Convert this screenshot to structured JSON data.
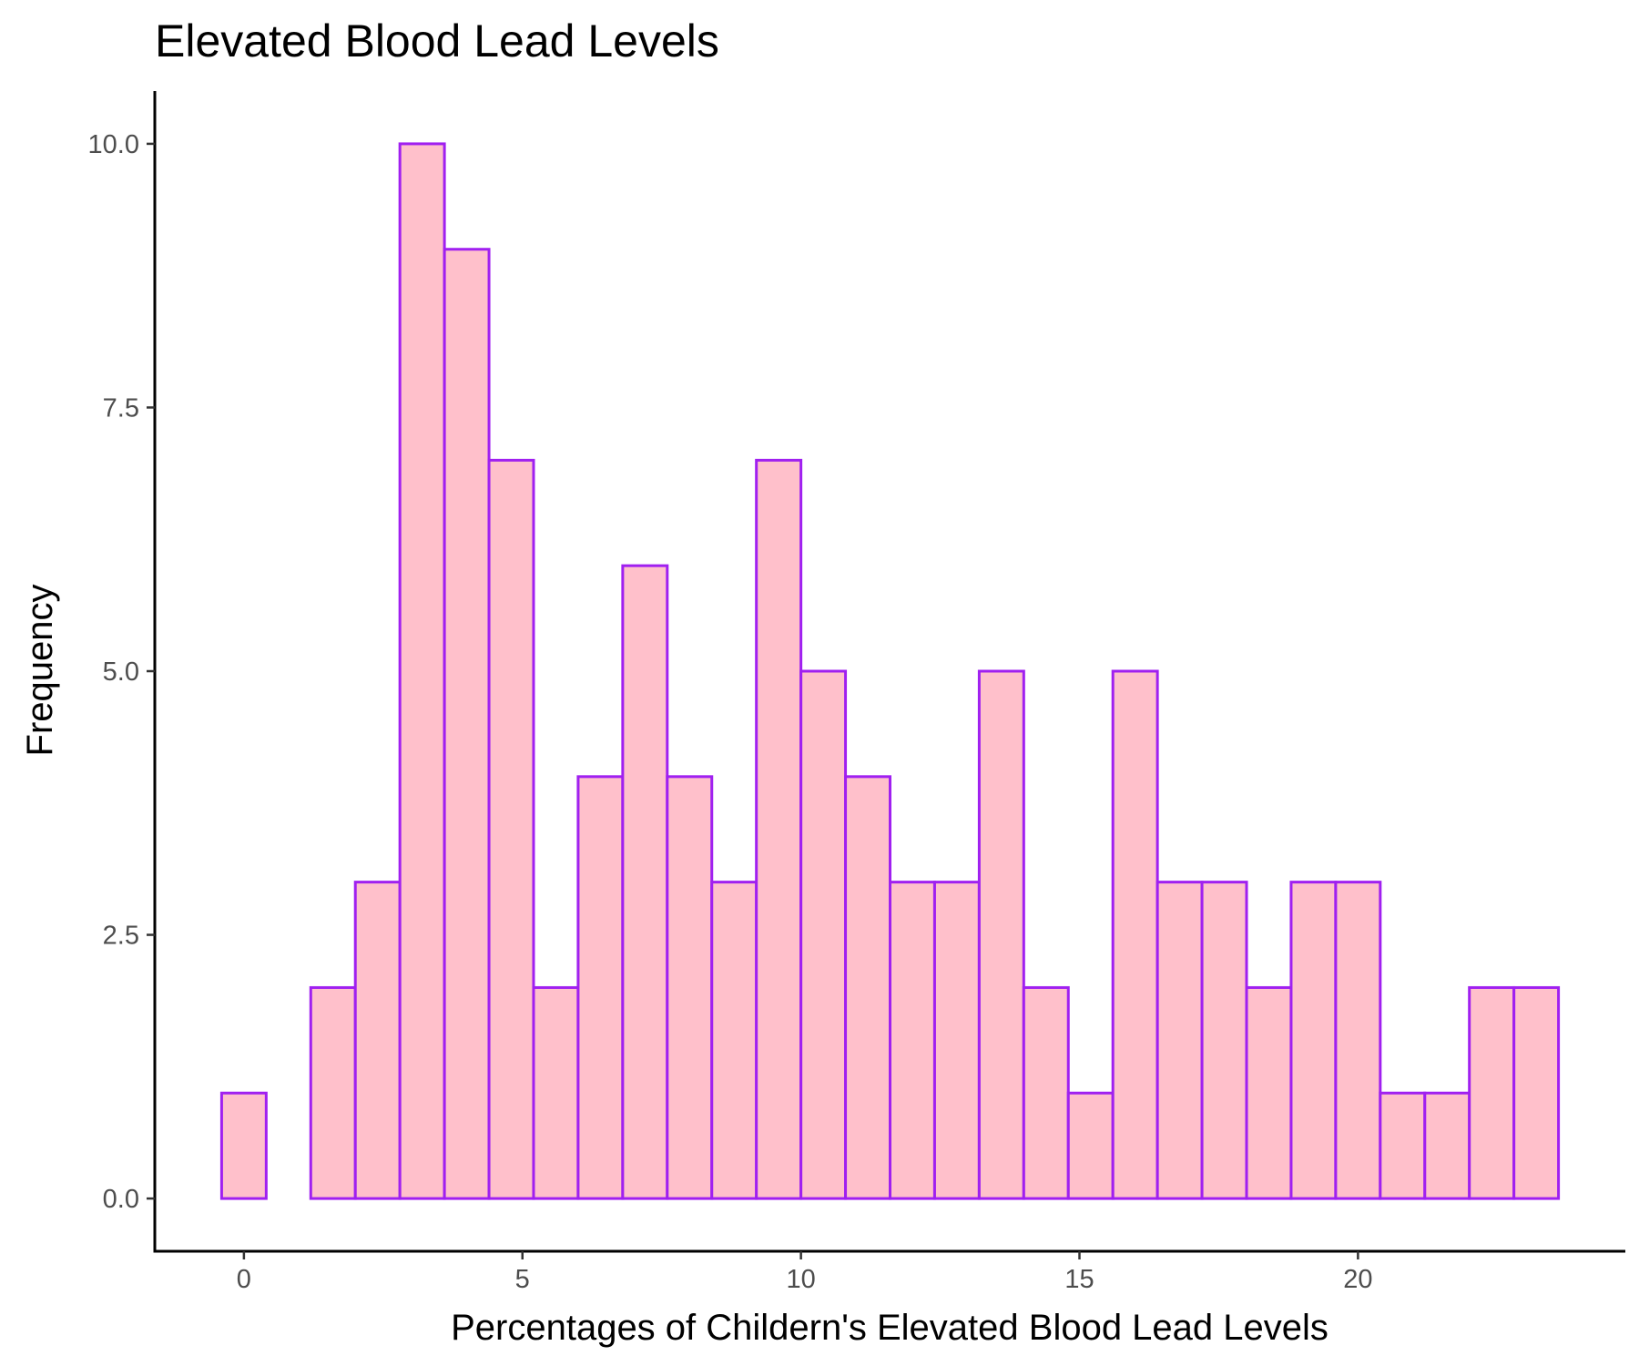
{
  "chart_data": {
    "type": "bar",
    "title": "Elevated Blood Lead Levels",
    "xlabel": "Percentages of Childern's Elevated Blood Lead Levels",
    "ylabel": "Frequency",
    "bins": [
      {
        "x0": -0.4,
        "x1": 0.4,
        "count": 1
      },
      {
        "x0": 0.4,
        "x1": 1.2,
        "count": 0
      },
      {
        "x0": 1.2,
        "x1": 2.0,
        "count": 2
      },
      {
        "x0": 2.0,
        "x1": 2.8,
        "count": 3
      },
      {
        "x0": 2.8,
        "x1": 3.6,
        "count": 10
      },
      {
        "x0": 3.6,
        "x1": 4.4,
        "count": 9
      },
      {
        "x0": 4.4,
        "x1": 5.2,
        "count": 7
      },
      {
        "x0": 5.2,
        "x1": 6.0,
        "count": 2
      },
      {
        "x0": 6.0,
        "x1": 6.8,
        "count": 4
      },
      {
        "x0": 6.8,
        "x1": 7.6,
        "count": 6
      },
      {
        "x0": 7.6,
        "x1": 8.4,
        "count": 4
      },
      {
        "x0": 8.4,
        "x1": 9.2,
        "count": 3
      },
      {
        "x0": 9.2,
        "x1": 10.0,
        "count": 7
      },
      {
        "x0": 10.0,
        "x1": 10.8,
        "count": 5
      },
      {
        "x0": 10.8,
        "x1": 11.6,
        "count": 4
      },
      {
        "x0": 11.6,
        "x1": 12.4,
        "count": 3
      },
      {
        "x0": 12.4,
        "x1": 13.2,
        "count": 3
      },
      {
        "x0": 13.2,
        "x1": 14.0,
        "count": 5
      },
      {
        "x0": 14.0,
        "x1": 14.8,
        "count": 2
      },
      {
        "x0": 14.8,
        "x1": 15.6,
        "count": 1
      },
      {
        "x0": 15.6,
        "x1": 16.4,
        "count": 5
      },
      {
        "x0": 16.4,
        "x1": 17.2,
        "count": 3
      },
      {
        "x0": 17.2,
        "x1": 18.0,
        "count": 3
      },
      {
        "x0": 18.0,
        "x1": 18.8,
        "count": 2
      },
      {
        "x0": 18.8,
        "x1": 19.6,
        "count": 3
      },
      {
        "x0": 19.6,
        "x1": 20.4,
        "count": 3
      },
      {
        "x0": 20.4,
        "x1": 21.2,
        "count": 1
      },
      {
        "x0": 21.2,
        "x1": 22.0,
        "count": 1
      },
      {
        "x0": 22.0,
        "x1": 22.8,
        "count": 2
      },
      {
        "x0": 22.8,
        "x1": 23.6,
        "count": 2
      }
    ],
    "xlim": [
      -1.6,
      24.8
    ],
    "ylim": [
      -0.5,
      10.5
    ],
    "xticks": [
      0,
      5,
      10,
      15,
      20
    ],
    "xtick_labels": [
      "0",
      "5",
      "10",
      "15",
      "20"
    ],
    "yticks": [
      0,
      2.5,
      5,
      7.5,
      10
    ],
    "ytick_labels": [
      "0.0",
      "2.5",
      "5.0",
      "7.5",
      "10.0"
    ],
    "bar_fill": "#ffc0cb",
    "bar_stroke": "#a020f0",
    "grid": false,
    "legend": "none"
  }
}
